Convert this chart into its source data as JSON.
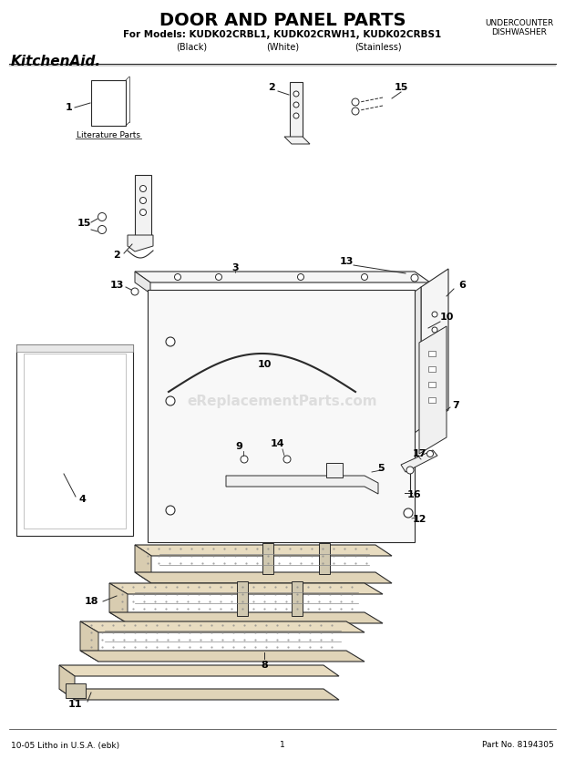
{
  "title": "DOOR AND PANEL PARTS",
  "subtitle": "For Models: KUDK02CRBL1, KUDK02CRWH1, KUDK02CRBS1",
  "model_variants": [
    "(Black)",
    "(White)",
    "(Stainless)"
  ],
  "top_right_text": [
    "UNDERCOUNTER",
    "DISHWASHER"
  ],
  "brand": "KitchenAid.",
  "footer_left": "10-05 Litho in U.S.A. (ebk)",
  "footer_center": "1",
  "footer_right": "Part No. 8194305",
  "watermark": "eReplacementParts.com",
  "bg_color": "#ffffff",
  "line_color": "#2a2a2a",
  "text_color": "#000000"
}
